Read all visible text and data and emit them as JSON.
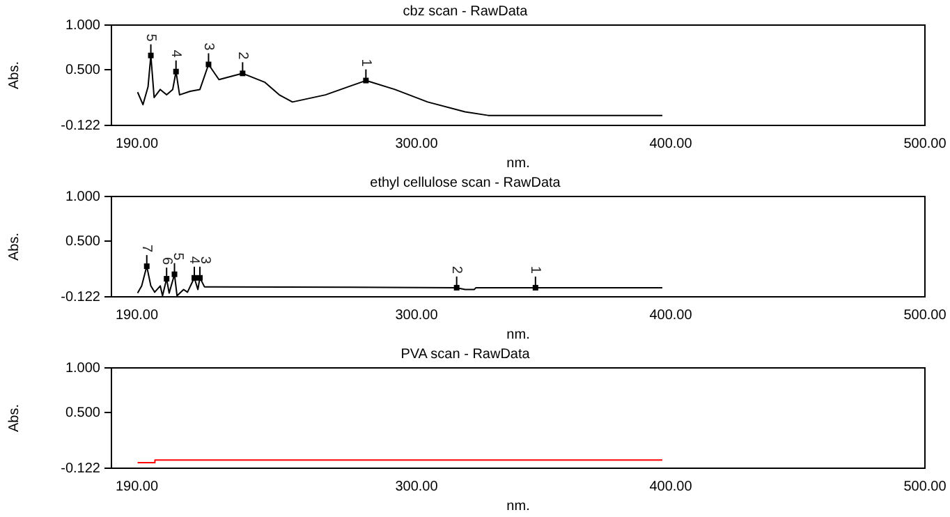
{
  "chart_data": [
    {
      "type": "line",
      "title": "cbz scan - RawData",
      "xlabel": "nm.",
      "ylabel": "Abs.",
      "grid": false,
      "legend": false,
      "marker": "none",
      "xlim": [
        180,
        500
      ],
      "xticks": [
        {
          "value": 190,
          "label": "190.00"
        },
        {
          "value": 300,
          "label": "300.00"
        },
        {
          "value": 400,
          "label": "400.00"
        },
        {
          "value": 500,
          "label": "500.00"
        }
      ],
      "ylim": [
        -0.122,
        1
      ],
      "yticks": [
        {
          "value": -0.122,
          "label": "-0.122"
        },
        {
          "value": 0.5,
          "label": "0.500"
        },
        {
          "value": 1,
          "label": "1.000"
        }
      ],
      "series": [
        {
          "color": "#000000",
          "x": [
            190.3,
            192.4,
            194.4,
            195.5,
            196.8,
            199.2,
            201.7,
            204.1,
            205.4,
            206.8,
            211.0,
            214.8,
            218.2,
            222.3,
            231.6,
            240.4,
            246.0,
            251.2,
            264.2,
            280.1,
            291.5,
            304.4,
            319.1,
            328.2,
            396.7
          ],
          "values": [
            0.25,
            0.11,
            0.31,
            0.66,
            0.19,
            0.28,
            0.22,
            0.28,
            0.48,
            0.22,
            0.26,
            0.28,
            0.56,
            0.39,
            0.46,
            0.36,
            0.22,
            0.14,
            0.22,
            0.38,
            0.28,
            0.14,
            0.03,
            -0.01,
            -0.01
          ]
        }
      ],
      "annotations": [
        {
          "text": "5",
          "x": 195.5,
          "y": 0.66
        },
        {
          "text": "4",
          "x": 205.4,
          "y": 0.48
        },
        {
          "text": "3",
          "x": 218.2,
          "y": 0.56
        },
        {
          "text": "2",
          "x": 231.6,
          "y": 0.46
        },
        {
          "text": "1",
          "x": 280.1,
          "y": 0.38
        }
      ]
    },
    {
      "type": "line",
      "title": "ethyl cellulose scan - RawData",
      "xlabel": "nm.",
      "ylabel": "Abs.",
      "grid": false,
      "legend": false,
      "marker": "none",
      "xlim": [
        180,
        500
      ],
      "xticks": [
        {
          "value": 190,
          "label": "190.00"
        },
        {
          "value": 300,
          "label": "300.00"
        },
        {
          "value": 400,
          "label": "400.00"
        },
        {
          "value": 500,
          "label": "500.00"
        }
      ],
      "ylim": [
        -0.122,
        1
      ],
      "yticks": [
        {
          "value": -0.122,
          "label": "-0.122"
        },
        {
          "value": 0.5,
          "label": "0.500"
        },
        {
          "value": 1,
          "label": "1.000"
        }
      ],
      "series": [
        {
          "color": "#000000",
          "x": [
            190.3,
            191.9,
            193.9,
            195.5,
            197.0,
            199.2,
            200.1,
            201.7,
            202.7,
            204.8,
            205.8,
            208.4,
            209.9,
            212.6,
            214.0,
            214.8,
            216.6,
            220.2,
            315.8,
            319.1,
            322.7,
            323.4,
            396.7
          ],
          "values": [
            -0.08,
            0,
            0.22,
            0,
            -0.07,
            0,
            -0.11,
            0.08,
            -0.08,
            0.13,
            -0.11,
            -0.04,
            -0.07,
            0.09,
            -0.04,
            0.09,
            -0.01,
            -0.01,
            -0.02,
            -0.04,
            -0.04,
            -0.02,
            -0.02
          ]
        }
      ],
      "annotations": [
        {
          "text": "7",
          "x": 193.9,
          "y": 0.22
        },
        {
          "text": "6",
          "x": 201.7,
          "y": 0.08
        },
        {
          "text": "5",
          "x": 204.8,
          "y": 0.13
        },
        {
          "text": "4",
          "x": 212.6,
          "y": 0.09
        },
        {
          "text": "3",
          "x": 214.8,
          "y": 0.09
        },
        {
          "text": "2",
          "x": 315.8,
          "y": -0.02
        },
        {
          "text": "1",
          "x": 346.8,
          "y": -0.02
        }
      ]
    },
    {
      "type": "line",
      "title": "PVA scan - RawData",
      "xlabel": "nm.",
      "ylabel": "Abs.",
      "grid": false,
      "legend": false,
      "marker": "none",
      "xlim": [
        180,
        500
      ],
      "xticks": [
        {
          "value": 190,
          "label": "190.00"
        },
        {
          "value": 300,
          "label": "300.00"
        },
        {
          "value": 400,
          "label": "400.00"
        },
        {
          "value": 500,
          "label": "500.00"
        }
      ],
      "ylim": [
        -0.122,
        1
      ],
      "yticks": [
        {
          "value": -0.122,
          "label": "-0.122"
        },
        {
          "value": 0.5,
          "label": "0.500"
        },
        {
          "value": 1,
          "label": "1.000"
        }
      ],
      "series": [
        {
          "color": "#ff0000",
          "x": [
            190.3,
            197.0,
            197.1,
            396.7
          ],
          "values": [
            -0.06,
            -0.06,
            -0.03,
            -0.03
          ]
        }
      ]
    }
  ]
}
